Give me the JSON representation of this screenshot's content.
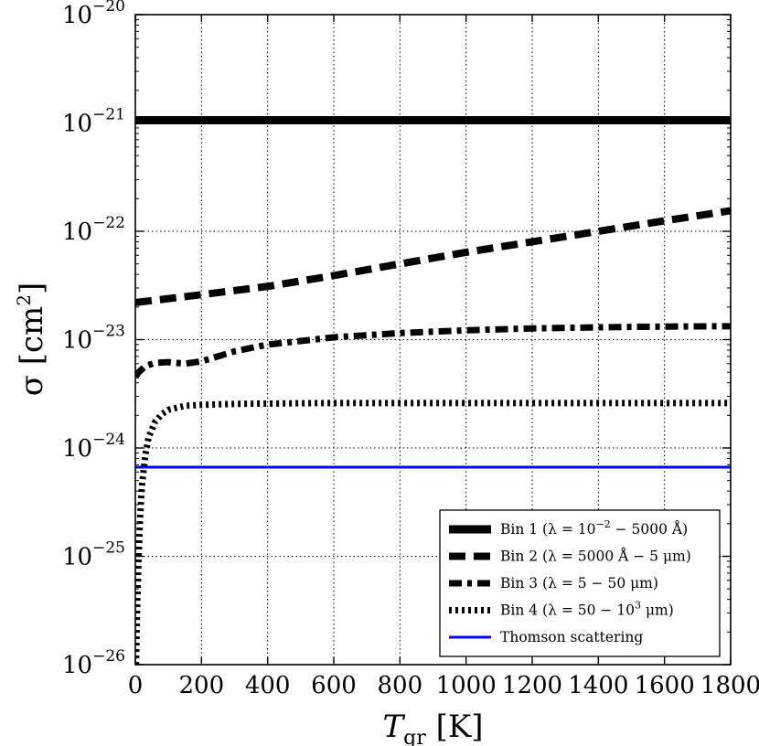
{
  "chart_data": {
    "type": "line",
    "xlim": [
      0,
      1800
    ],
    "ylim_exponents": [
      -26,
      -20
    ],
    "yscale": "log",
    "x_ticks": [
      "0",
      "200",
      "400",
      "600",
      "800",
      "1000",
      "1200",
      "1400",
      "1600",
      "1800"
    ],
    "y_ticks": [
      {
        "base": "10",
        "exp": "−20",
        "exponent": -20
      },
      {
        "base": "10",
        "exp": "−21",
        "exponent": -21
      },
      {
        "base": "10",
        "exp": "−22",
        "exponent": -22
      },
      {
        "base": "10",
        "exp": "−23",
        "exponent": -23
      },
      {
        "base": "10",
        "exp": "−24",
        "exponent": -24
      },
      {
        "base": "10",
        "exp": "−25",
        "exponent": -25
      },
      {
        "base": "10",
        "exp": "−26",
        "exponent": -26
      }
    ],
    "xlabel": {
      "main": "T",
      "sub": "gr",
      "unit": " [K]"
    },
    "ylabel": {
      "main": "σ [cm",
      "sup": "2",
      "end": "]"
    },
    "grid": true,
    "legend_position": "lower-right",
    "series": [
      {
        "name": "Bin 1",
        "legend_parts": {
          "pre": "Bin 1 (λ = 10",
          "sup": "−2",
          "post": " − 5000 Å)"
        },
        "color": "#000000",
        "style": "solid-thick",
        "x": [
          0,
          1800
        ],
        "y": [
          1.06e-21,
          1.06e-21
        ]
      },
      {
        "name": "Bin 2",
        "legend_parts": {
          "pre": "Bin 2 (λ = 5000 Å − 5 μm)",
          "sup": "",
          "post": ""
        },
        "color": "#000000",
        "style": "dashed",
        "x": [
          0,
          200,
          400,
          600,
          800,
          1000,
          1200,
          1400,
          1600,
          1800
        ],
        "y": [
          2.2e-23,
          2.6e-23,
          3.1e-23,
          3.9e-23,
          5e-23,
          6.4e-23,
          8e-23,
          1e-22,
          1.25e-22,
          1.55e-22
        ]
      },
      {
        "name": "Bin 3",
        "legend_parts": {
          "pre": "Bin 3 (λ = 5 − 50 μm)",
          "sup": "",
          "post": ""
        },
        "color": "#000000",
        "style": "dashdot",
        "x": [
          0,
          10,
          30,
          60,
          100,
          150,
          200,
          300,
          400,
          600,
          800,
          1000,
          1200,
          1400,
          1600,
          1800
        ],
        "y": [
          4.5e-24,
          5e-24,
          5.7e-24,
          6.1e-24,
          6.2e-24,
          6e-24,
          6.3e-24,
          7.8e-24,
          9e-24,
          1.05e-23,
          1.15e-23,
          1.22e-23,
          1.27e-23,
          1.3e-23,
          1.32e-23,
          1.33e-23
        ]
      },
      {
        "name": "Bin 4",
        "legend_parts": {
          "pre": "Bin 4 (λ = 50 − 10",
          "sup": "3",
          "post": " μm)"
        },
        "color": "#000000",
        "style": "dotted",
        "x": [
          2,
          5,
          10,
          15,
          20,
          30,
          40,
          60,
          80,
          100,
          150,
          200,
          300,
          400,
          600,
          800,
          1000,
          1200,
          1400,
          1600,
          1800
        ],
        "y": [
          1e-26,
          3e-26,
          1e-25,
          2.5e-25,
          4.5e-25,
          8.5e-25,
          1.25e-24,
          1.75e-24,
          2.05e-24,
          2.25e-24,
          2.45e-24,
          2.5e-24,
          2.55e-24,
          2.57e-24,
          2.6e-24,
          2.6e-24,
          2.6e-24,
          2.6e-24,
          2.6e-24,
          2.6e-24,
          2.6e-24
        ]
      },
      {
        "name": "Thomson scattering",
        "legend_parts": {
          "pre": "Thomson scattering",
          "sup": "",
          "post": ""
        },
        "color": "#0000ff",
        "style": "solid",
        "x": [
          0,
          1800
        ],
        "y": [
          6.65e-25,
          6.65e-25
        ]
      }
    ]
  }
}
